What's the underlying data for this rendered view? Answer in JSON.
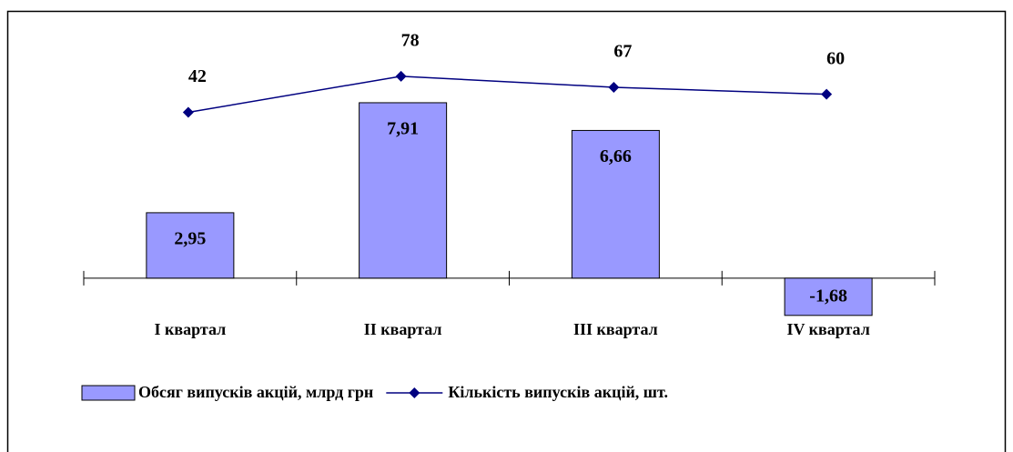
{
  "chart_data": {
    "type": "bar_line",
    "categories": [
      "I квартал",
      "II квартал",
      "III квартал",
      "IV квартал"
    ],
    "series": [
      {
        "name": "Обсяг випусків акцій, млрд грн",
        "type": "bar",
        "color": "#9999ff",
        "values": [
          2.95,
          7.91,
          6.66,
          -1.68
        ],
        "value_labels": [
          "2,95",
          "7,91",
          "6,66",
          "-1,68"
        ]
      },
      {
        "name": "Кількість випусків акцій, шт.",
        "type": "line",
        "axis": "y2",
        "color": "#000080",
        "values": [
          42,
          78,
          67,
          60
        ]
      }
    ],
    "ylim": [
      -3,
      11
    ],
    "y2lim": [
      -190,
      120
    ],
    "legend": "bottom"
  }
}
